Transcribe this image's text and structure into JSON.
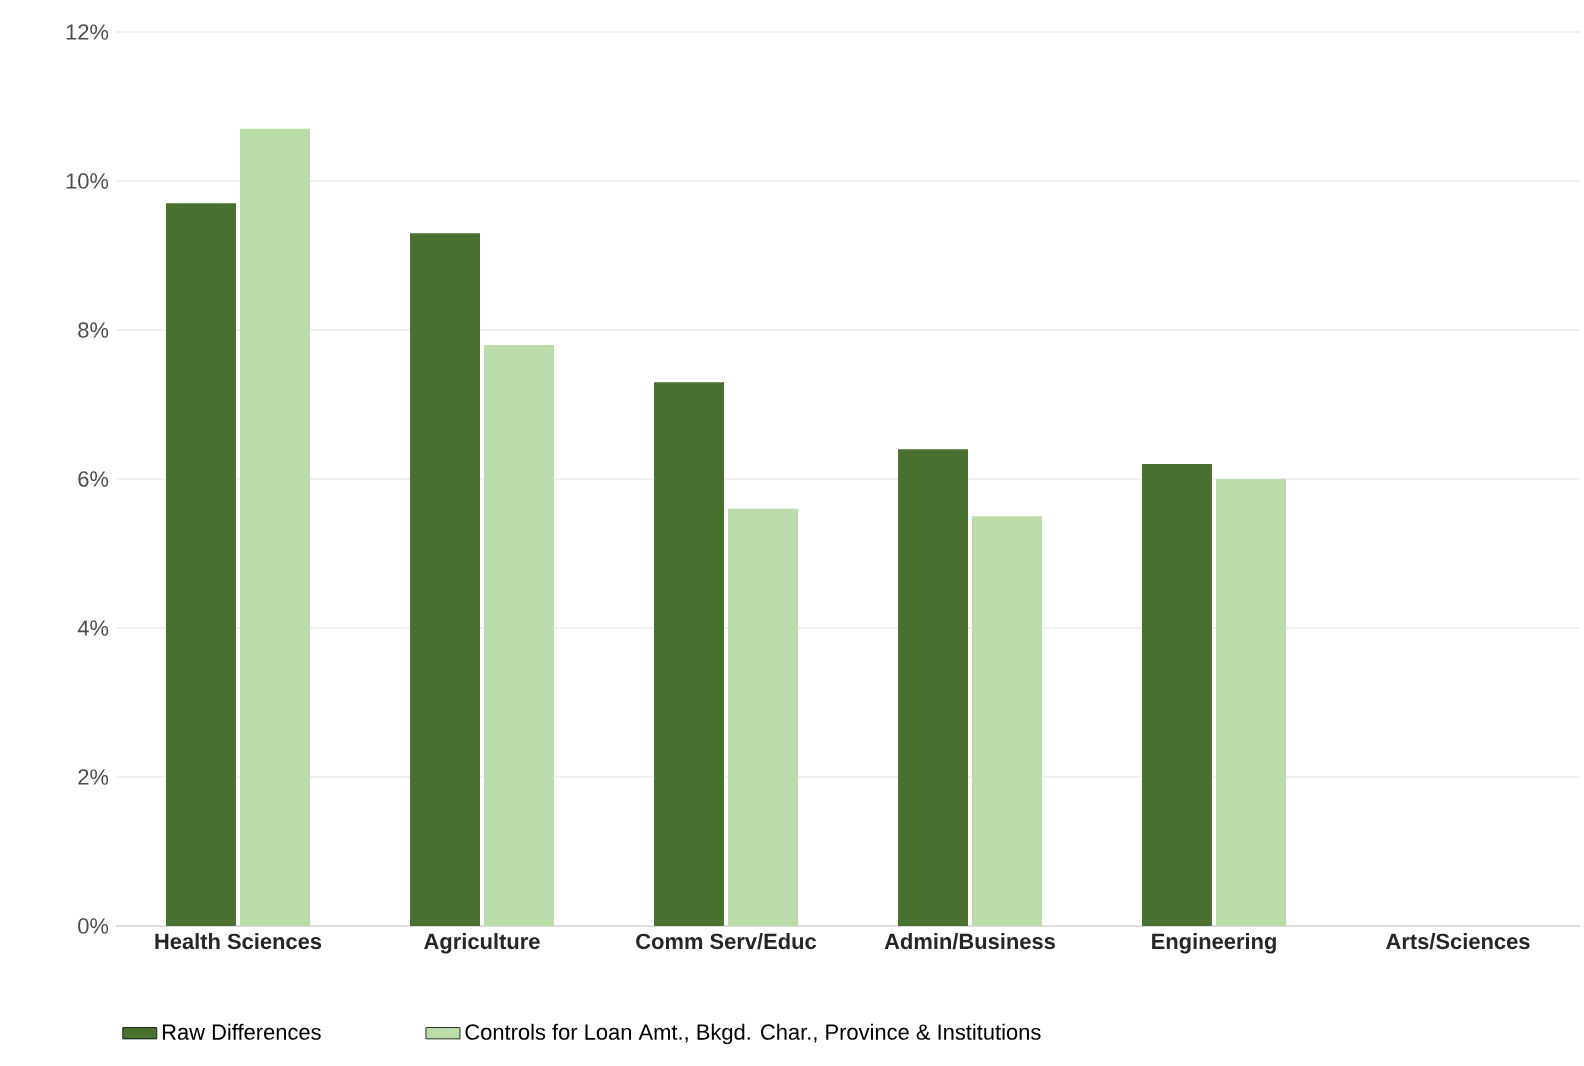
{
  "chart_data": {
    "type": "bar",
    "categories": [
      "Health Sciences",
      "Agriculture",
      "Comm Serv/Educ",
      "Admin/Business",
      "Engineering",
      "Arts/Sciences"
    ],
    "series": [
      {
        "name": "Raw Differences",
        "color": "#4a7030",
        "values": [
          9.7,
          9.3,
          7.3,
          6.4,
          6.2,
          0
        ]
      },
      {
        "name": "Controls for Loan Amt., Bkgd. Char., Province & Institutions",
        "color": "#bbdca8",
        "values": [
          10.7,
          7.8,
          5.6,
          5.5,
          6.0,
          0
        ]
      }
    ],
    "ylim": [
      0,
      12
    ],
    "yticks": [
      {
        "value": 0,
        "label": "0%"
      },
      {
        "value": 2,
        "label": "2%"
      },
      {
        "value": 4,
        "label": "4%"
      },
      {
        "value": 6,
        "label": "6%"
      },
      {
        "value": 8,
        "label": "8%"
      },
      {
        "value": 10,
        "label": "10%"
      },
      {
        "value": 12,
        "label": "12%"
      }
    ],
    "grid": "y",
    "legend": "bottom"
  }
}
